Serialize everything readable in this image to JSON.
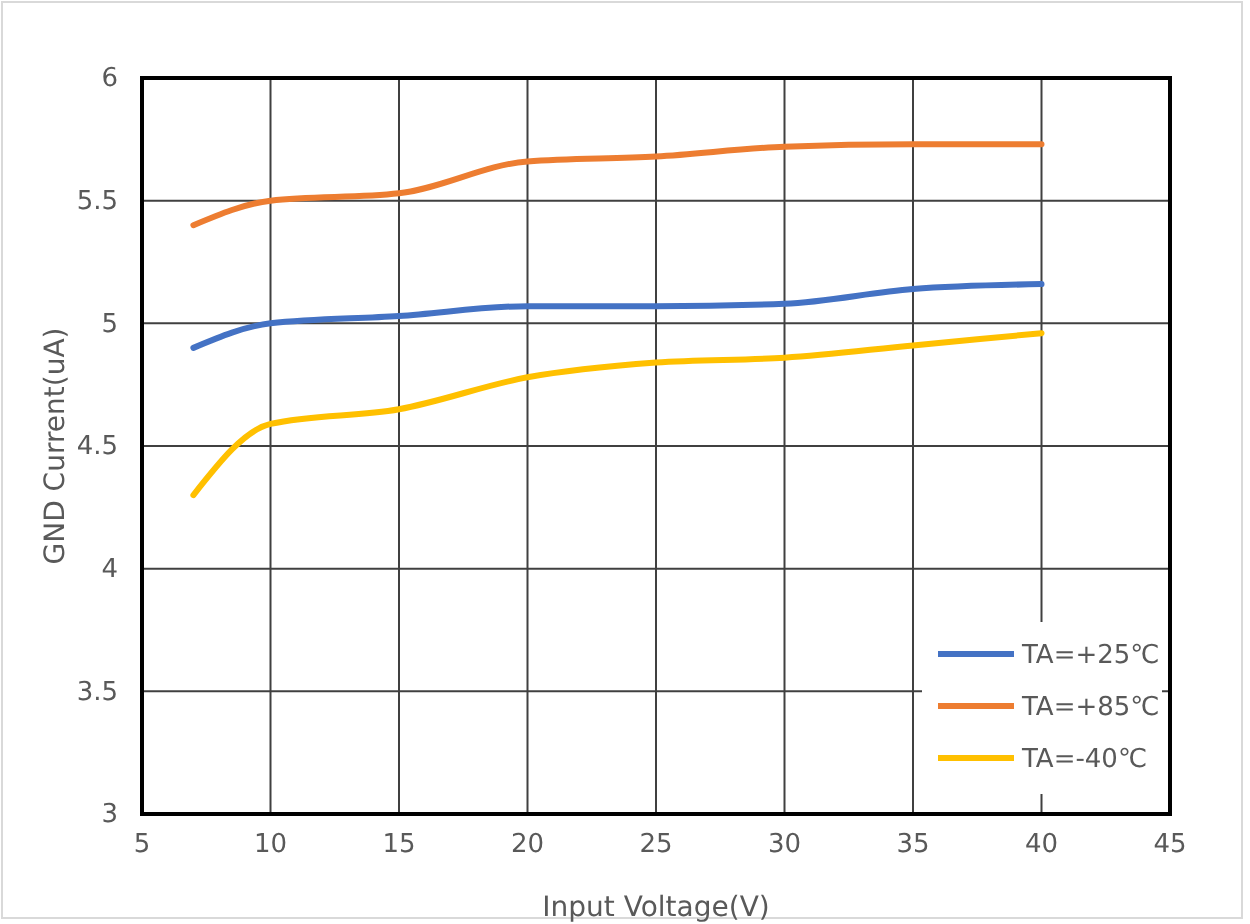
{
  "chart_data": {
    "type": "line",
    "xlabel": "Input Voltage(V)",
    "ylabel": "GND Current(uA)",
    "x": [
      7,
      10,
      15,
      20,
      25,
      30,
      35,
      40
    ],
    "series": [
      {
        "name": "TA=+25℃",
        "color": "#4472c4",
        "values": [
          4.9,
          5.0,
          5.03,
          5.07,
          5.07,
          5.08,
          5.14,
          5.16
        ]
      },
      {
        "name": "TA=+85℃",
        "color": "#ed7d31",
        "values": [
          5.4,
          5.5,
          5.53,
          5.66,
          5.68,
          5.72,
          5.73,
          5.73
        ]
      },
      {
        "name": "TA=-40℃",
        "color": "#ffc000",
        "values": [
          4.3,
          4.59,
          4.65,
          4.78,
          4.84,
          4.86,
          4.91,
          4.96
        ]
      }
    ],
    "xlim": [
      5,
      45
    ],
    "xticks": [
      5,
      10,
      15,
      20,
      25,
      30,
      35,
      40,
      45
    ],
    "ylim": [
      3,
      6
    ],
    "yticks": [
      3,
      3.5,
      4,
      4.5,
      5,
      5.5,
      6
    ],
    "grid": true,
    "legend": "bottom right",
    "marker": "none",
    "line_style": "solid"
  }
}
